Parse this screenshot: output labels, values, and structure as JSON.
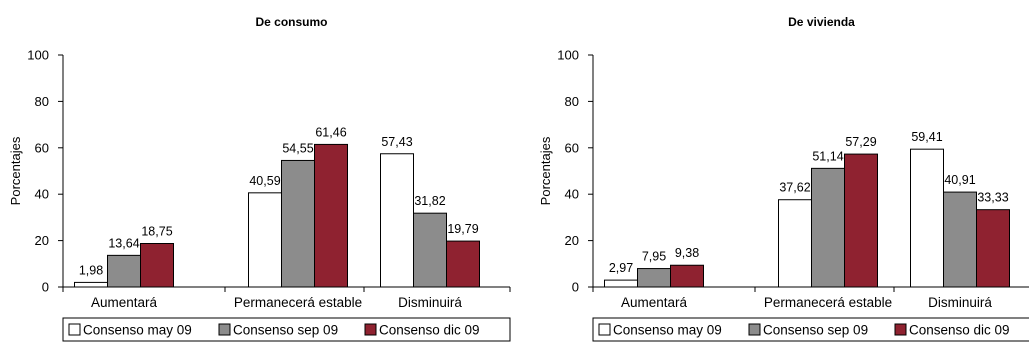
{
  "chart_data": [
    {
      "type": "bar",
      "title": "De consumo",
      "ylabel": "Porcentajes",
      "xlabel": "",
      "ylim": [
        0,
        100
      ],
      "yticks": [
        0,
        20,
        40,
        60,
        80,
        100
      ],
      "categories": [
        "Aumentará",
        "Permanecerá estable",
        "Disminuirá"
      ],
      "series": [
        {
          "name": "Consenso may 09",
          "color": "#ffffff",
          "values": [
            1.98,
            40.59,
            57.43
          ],
          "labels": [
            "1,98",
            "40,59",
            "57,43"
          ]
        },
        {
          "name": "Consenso sep 09",
          "color": "#8c8c8c",
          "values": [
            13.64,
            54.55,
            31.82
          ],
          "labels": [
            "13,64",
            "54,55",
            "31,82"
          ]
        },
        {
          "name": "Consenso dic 09",
          "color": "#8f2230",
          "values": [
            18.75,
            61.46,
            19.79
          ],
          "labels": [
            "18,75",
            "61,46",
            "19,79"
          ]
        }
      ],
      "legend": "bottom",
      "grid": false
    },
    {
      "type": "bar",
      "title": "De vivienda",
      "ylabel": "Porcentajes",
      "xlabel": "",
      "ylim": [
        0,
        100
      ],
      "yticks": [
        0,
        20,
        40,
        60,
        80,
        100
      ],
      "categories": [
        "Aumentará",
        "Permanecerá estable",
        "Disminuirá"
      ],
      "series": [
        {
          "name": "Consenso may 09",
          "color": "#ffffff",
          "values": [
            2.97,
            37.62,
            59.41
          ],
          "labels": [
            "2,97",
            "37,62",
            "59,41"
          ]
        },
        {
          "name": "Consenso sep 09",
          "color": "#8c8c8c",
          "values": [
            7.95,
            51.14,
            40.91
          ],
          "labels": [
            "7,95",
            "51,14",
            "40,91"
          ]
        },
        {
          "name": "Consenso dic 09",
          "color": "#8f2230",
          "values": [
            9.38,
            57.29,
            33.33
          ],
          "labels": [
            "9,38",
            "57,29",
            "33,33"
          ]
        }
      ],
      "legend": "bottom",
      "grid": false
    }
  ]
}
